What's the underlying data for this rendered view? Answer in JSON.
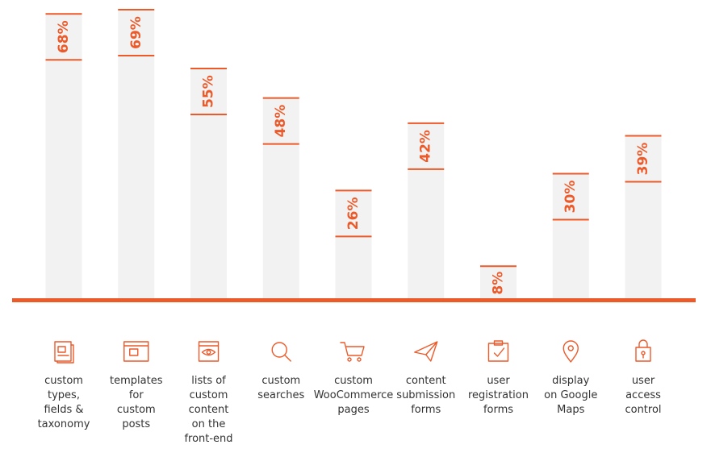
{
  "chart_data": {
    "type": "bar",
    "categories": [
      "custom\ntypes,\nfields &\ntaxonomy",
      "templates\nfor\ncustom\nposts",
      "lists of\ncustom\ncontent\non the\nfront-end",
      "custom\nsearches",
      "custom\nWooCommerce\npages",
      "content\nsubmission\nforms",
      "user\nregistration\nforms",
      "display\non Google\nMaps",
      "user\naccess\ncontrol"
    ],
    "values": [
      68,
      69,
      55,
      48,
      26,
      42,
      8,
      30,
      39
    ],
    "value_labels": [
      "68%",
      "69%",
      "55%",
      "48%",
      "26%",
      "42%",
      "8%",
      "30%",
      "39%"
    ],
    "color": "#ec5a2a",
    "bar_color": "#f2f2f2"
  }
}
